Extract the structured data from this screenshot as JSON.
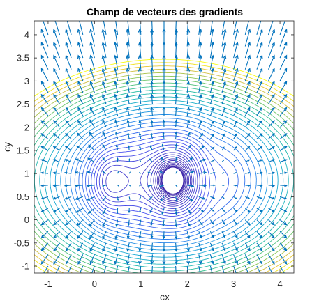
{
  "chart_data": {
    "type": "contour",
    "title": "Champ de vecteurs des gradients",
    "xlabel": "cx",
    "ylabel": "cy",
    "xlim": [
      -1.3,
      4.3
    ],
    "ylim": [
      -1.15,
      4.3
    ],
    "xticks": [
      -1,
      0,
      1,
      2,
      3,
      4
    ],
    "yticks": [
      -1,
      -0.5,
      0,
      0.5,
      1,
      1.5,
      2,
      2.5,
      3,
      3.5,
      4
    ],
    "xtick_labels": [
      "-1",
      "0",
      "1",
      "2",
      "3",
      "4"
    ],
    "ytick_labels": [
      "-1",
      "-0.5",
      "0",
      "0.5",
      "1",
      "1.5",
      "2",
      "2.5",
      "3",
      "3.5",
      "4"
    ],
    "colormap": "parula",
    "grid": false,
    "layers": [
      "contour lines of the objective",
      "quiver arrows of the gradient field"
    ],
    "minima": [
      {
        "x": 0.25,
        "y": 0.8
      },
      {
        "x": 1.85,
        "y": 0.85
      },
      {
        "x": 1.55,
        "y": 0.85
      }
    ],
    "quiver_grid": {
      "x_start": -1,
      "x_end": 4,
      "y_start": -1,
      "y_end": 4,
      "step": 0.25
    },
    "arrow_color": "#0072bd"
  }
}
